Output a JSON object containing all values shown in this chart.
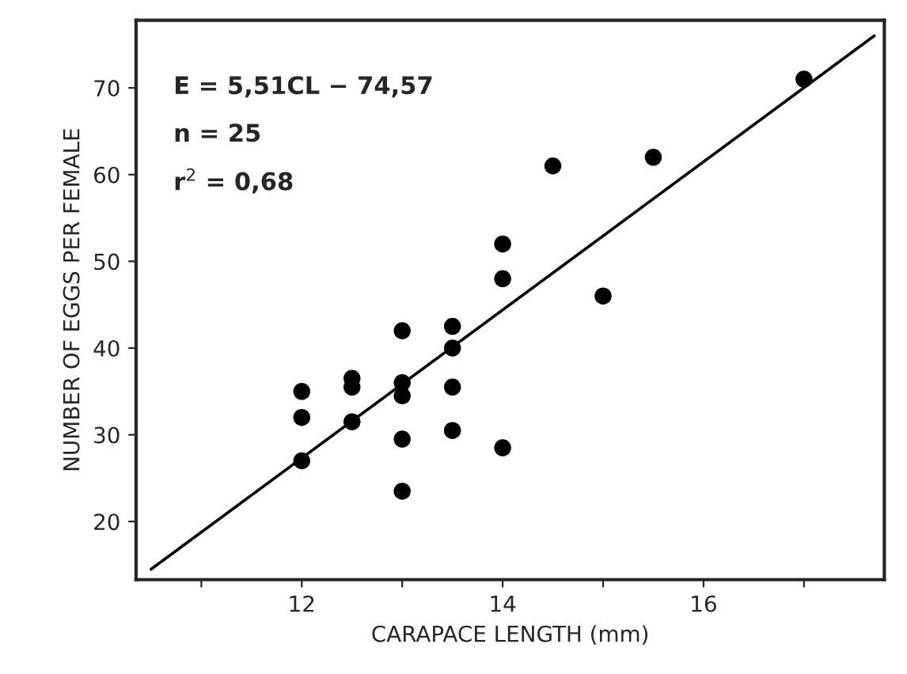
{
  "chart_data": {
    "type": "scatter",
    "xlabel": "CARAPACE LENGTH (mm)",
    "ylabel": "NUMBER OF EGGS PER FEMALE",
    "series": [
      {
        "color": "#000000",
        "x": [
          12,
          12,
          12,
          12.5,
          12.5,
          12.5,
          13,
          13,
          13,
          13,
          13,
          13.5,
          13.5,
          13.5,
          13.5,
          14,
          14,
          14,
          14.5,
          15,
          15.5,
          17
        ],
        "values": [
          35,
          32,
          27,
          36.5,
          35.5,
          31.5,
          42,
          36,
          34.5,
          29.5,
          23.5,
          42.5,
          40,
          35.5,
          30.5,
          52,
          48,
          28.5,
          61,
          46,
          62,
          71
        ]
      },
      {
        "type": "line",
        "color": "#000000",
        "x": [
          10.5,
          17.7
        ],
        "values": [
          14.5,
          76
        ]
      }
    ],
    "xlim": [
      10.35,
      17.8
    ],
    "ylim": [
      13.3,
      77.8
    ],
    "xticks": [
      {
        "value": 11,
        "label": null
      },
      12,
      {
        "value": 13,
        "label": null
      },
      14,
      {
        "value": 15,
        "label": null
      },
      16,
      {
        "value": 17,
        "label": null
      }
    ],
    "yticks": [
      20,
      30,
      40,
      50,
      60,
      70
    ],
    "annotations": [
      "E = 5,51CL − 74,57",
      "n = 25",
      "r$^{2}$ = 0,68"
    ],
    "grid": false,
    "legend": false
  }
}
